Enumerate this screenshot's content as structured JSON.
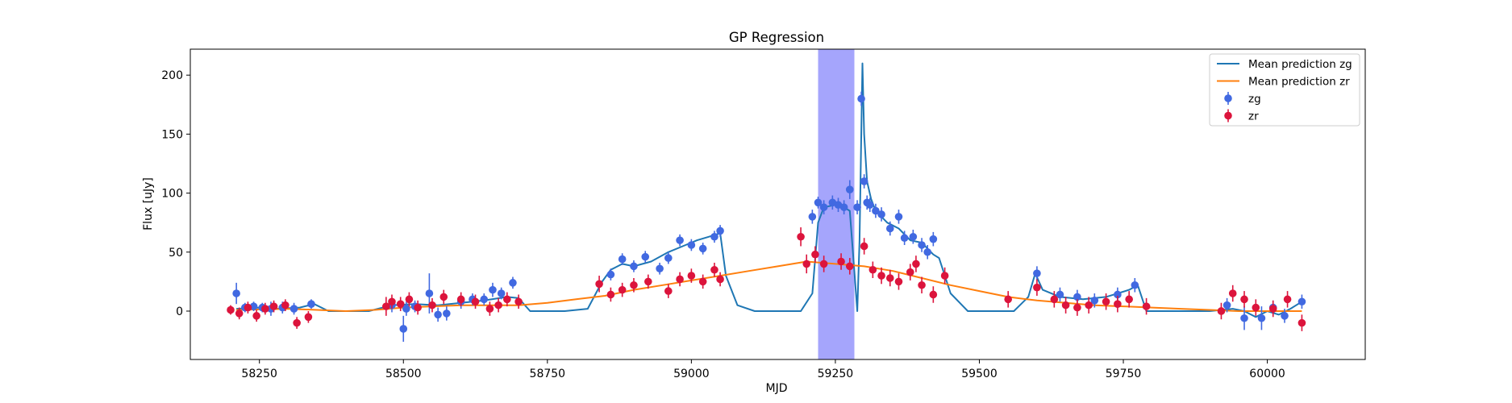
{
  "chart_data": {
    "type": "scatter",
    "title": "GP Regression",
    "xlabel": "MJD",
    "ylabel": "Flux [uJy]",
    "xlim": [
      58130,
      60170
    ],
    "ylim": [
      -41,
      222
    ],
    "xticks": [
      58250,
      58500,
      58750,
      59000,
      59250,
      59500,
      59750,
      60000
    ],
    "yticks": [
      0,
      50,
      100,
      150,
      200
    ],
    "grid": false,
    "legend_position": "top-right",
    "shaded_region": {
      "x_range": [
        59220,
        59283
      ],
      "color": "#a5a5fc"
    },
    "series": [
      {
        "name": "Mean prediction zg",
        "kind": "line",
        "color": "#1f77b4",
        "x": [
          58210,
          58250,
          58280,
          58320,
          58345,
          58370,
          58440,
          58480,
          58520,
          58560,
          58600,
          58640,
          58680,
          58700,
          58720,
          58780,
          58820,
          58845,
          58860,
          58880,
          58900,
          58930,
          58960,
          58990,
          59010,
          59030,
          59050,
          59060,
          59080,
          59110,
          59150,
          59190,
          59210,
          59220,
          59230,
          59250,
          59265,
          59275,
          59282,
          59288,
          59292,
          59297,
          59300,
          59305,
          59312,
          59320,
          59340,
          59360,
          59380,
          59400,
          59420,
          59430,
          59450,
          59480,
          59520,
          59560,
          59585,
          59597,
          59610,
          59640,
          59680,
          59720,
          59760,
          59775,
          59790,
          59820,
          59900,
          59940,
          59960,
          59980,
          60000,
          60020,
          60040,
          60060
        ],
        "y": [
          2,
          3,
          2,
          3,
          6,
          0,
          0,
          5,
          6,
          5,
          7,
          9,
          12,
          11,
          0,
          0,
          2,
          25,
          35,
          40,
          38,
          42,
          50,
          56,
          60,
          63,
          66,
          30,
          5,
          0,
          0,
          0,
          15,
          75,
          88,
          90,
          88,
          85,
          40,
          0,
          60,
          210,
          150,
          110,
          95,
          85,
          75,
          70,
          60,
          58,
          48,
          45,
          15,
          0,
          0,
          0,
          12,
          32,
          18,
          12,
          10,
          12,
          18,
          22,
          0,
          0,
          0,
          2,
          0,
          -5,
          0,
          -3,
          2,
          8
        ]
      },
      {
        "name": "Mean prediction zr",
        "kind": "line",
        "color": "#ff7f0e",
        "x": [
          58210,
          58300,
          58350,
          58400,
          58450,
          58500,
          58550,
          58600,
          58650,
          58700,
          58750,
          58800,
          58850,
          58900,
          58950,
          59000,
          59050,
          59100,
          59150,
          59200,
          59250,
          59300,
          59350,
          59400,
          59450,
          59500,
          59550,
          59600,
          59650,
          59700,
          59750,
          59800,
          59850,
          59900,
          59950,
          60000,
          60060
        ],
        "y": [
          1,
          2,
          1,
          0,
          1,
          3,
          4,
          5,
          5,
          5,
          7,
          10,
          13,
          18,
          22,
          26,
          30,
          34,
          38,
          42,
          40,
          38,
          34,
          28,
          22,
          17,
          12,
          9,
          7,
          5,
          4,
          3,
          2,
          1,
          0,
          0,
          0
        ]
      },
      {
        "name": "zg",
        "kind": "errorbar",
        "color": "#4169e1",
        "x": [
          58210,
          58225,
          58240,
          58255,
          58270,
          58290,
          58310,
          58340,
          58480,
          58500,
          58505,
          58520,
          58545,
          58560,
          58575,
          58600,
          58620,
          58640,
          58655,
          58670,
          58690,
          58860,
          58880,
          58900,
          58920,
          58945,
          58960,
          58980,
          59000,
          59020,
          59040,
          59050,
          59210,
          59220,
          59230,
          59245,
          59255,
          59265,
          59275,
          59288,
          59295,
          59300,
          59305,
          59310,
          59320,
          59330,
          59345,
          59360,
          59370,
          59385,
          59400,
          59410,
          59420,
          59600,
          59640,
          59670,
          59700,
          59740,
          59770,
          59930,
          59960,
          59990,
          60010,
          60030,
          60060
        ],
        "y": [
          15,
          3,
          4,
          3,
          2,
          3,
          2,
          6,
          5,
          -15,
          2,
          4,
          15,
          -3,
          -2,
          8,
          10,
          10,
          18,
          15,
          24,
          31,
          44,
          38,
          46,
          36,
          45,
          60,
          56,
          53,
          63,
          68,
          80,
          92,
          88,
          92,
          90,
          88,
          103,
          88,
          180,
          110,
          92,
          90,
          85,
          82,
          70,
          80,
          62,
          63,
          56,
          50,
          61,
          32,
          14,
          12,
          9,
          14,
          22,
          5,
          -6,
          -6,
          3,
          -4,
          8
        ],
        "yerr": [
          9,
          4,
          4,
          4,
          6,
          5,
          5,
          4,
          6,
          11,
          6,
          5,
          17,
          6,
          6,
          6,
          5,
          5,
          6,
          5,
          5,
          5,
          5,
          5,
          5,
          5,
          5,
          5,
          5,
          5,
          5,
          5,
          6,
          5,
          6,
          6,
          6,
          6,
          8,
          6,
          6,
          6,
          6,
          6,
          6,
          6,
          6,
          6,
          6,
          6,
          6,
          6,
          6,
          6,
          6,
          6,
          6,
          6,
          6,
          6,
          10,
          10,
          6,
          6,
          6
        ]
      },
      {
        "name": "zr",
        "kind": "errorbar",
        "color": "#dc143c",
        "x": [
          58200,
          58215,
          58230,
          58245,
          58260,
          58275,
          58295,
          58315,
          58335,
          58470,
          58480,
          58495,
          58510,
          58525,
          58550,
          58570,
          58600,
          58625,
          58650,
          58665,
          58680,
          58700,
          58840,
          58860,
          58880,
          58900,
          58925,
          58960,
          58980,
          59000,
          59020,
          59040,
          59050,
          59190,
          59200,
          59215,
          59230,
          59260,
          59275,
          59300,
          59315,
          59330,
          59345,
          59360,
          59380,
          59390,
          59400,
          59420,
          59440,
          59550,
          59600,
          59630,
          59650,
          59670,
          59690,
          59720,
          59740,
          59760,
          59790,
          59920,
          59940,
          59960,
          59980,
          60010,
          60035,
          60060
        ],
        "y": [
          1,
          -2,
          3,
          -4,
          2,
          4,
          5,
          -10,
          -5,
          4,
          8,
          6,
          10,
          3,
          5,
          12,
          10,
          8,
          2,
          5,
          10,
          8,
          23,
          14,
          18,
          22,
          25,
          17,
          27,
          30,
          25,
          35,
          27,
          63,
          40,
          48,
          40,
          42,
          38,
          55,
          35,
          30,
          28,
          25,
          33,
          40,
          22,
          14,
          30,
          10,
          20,
          10,
          5,
          3,
          5,
          8,
          6,
          10,
          4,
          0,
          15,
          10,
          3,
          2,
          10,
          -10
        ],
        "yerr": [
          4,
          5,
          5,
          5,
          5,
          5,
          5,
          5,
          5,
          8,
          6,
          6,
          6,
          6,
          6,
          6,
          6,
          6,
          6,
          6,
          6,
          6,
          7,
          6,
          6,
          6,
          6,
          6,
          6,
          6,
          6,
          6,
          6,
          8,
          8,
          7,
          7,
          7,
          7,
          7,
          7,
          7,
          7,
          7,
          7,
          7,
          7,
          7,
          7,
          7,
          7,
          7,
          7,
          7,
          7,
          7,
          7,
          7,
          7,
          7,
          7,
          7,
          7,
          7,
          7,
          7
        ]
      }
    ]
  }
}
